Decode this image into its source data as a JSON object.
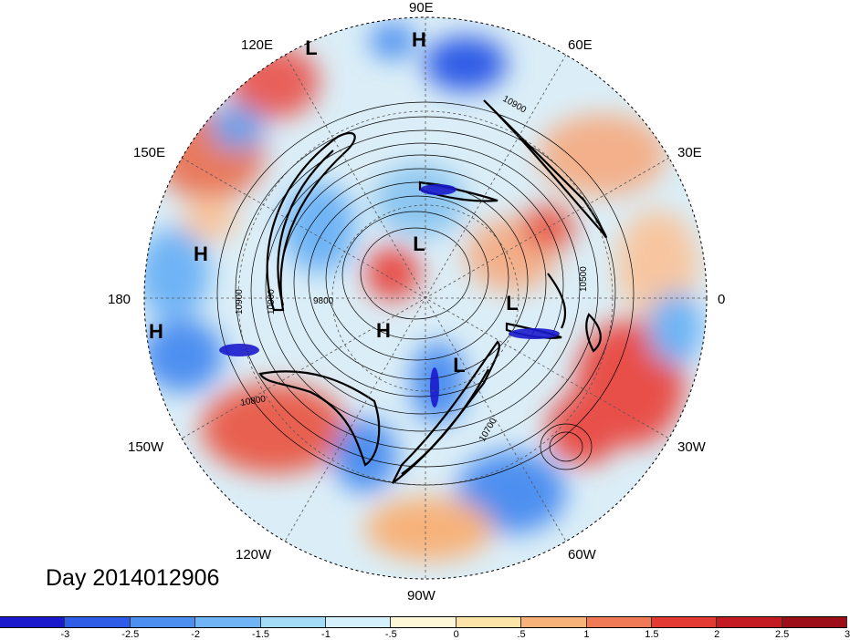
{
  "title": "Day 2014012906",
  "longitude_labels": {
    "e90": "90E",
    "e60": "60E",
    "e30": "30E",
    "zero": "0",
    "w30": "30W",
    "w60": "60W",
    "w90": "90W",
    "w120": "120W",
    "w150": "150W",
    "dateline": "180",
    "e150": "150E",
    "e120": "120E"
  },
  "pressure_centers": [
    "H",
    "L",
    "H",
    "H",
    "L",
    "H",
    "L",
    "L"
  ],
  "contour_labels": [
    "10900",
    "10900",
    "10900",
    "9800",
    "10800",
    "10700",
    "10500"
  ],
  "colorbar": {
    "colors": [
      "#1a1acc",
      "#2e5ce6",
      "#4d8ff0",
      "#70b4f5",
      "#a3dcf7",
      "#d4f0fa",
      "#fdf7d8",
      "#fce3a8",
      "#f7b27a",
      "#f07a55",
      "#e33a33",
      "#c41a22",
      "#9c0f18"
    ],
    "tick_labels": [
      "-3",
      "-2.5",
      "-2",
      "-1.5",
      "-1",
      "-.5",
      "0",
      ".5",
      "1",
      "1.5",
      "2",
      "2.5",
      "3"
    ]
  }
}
